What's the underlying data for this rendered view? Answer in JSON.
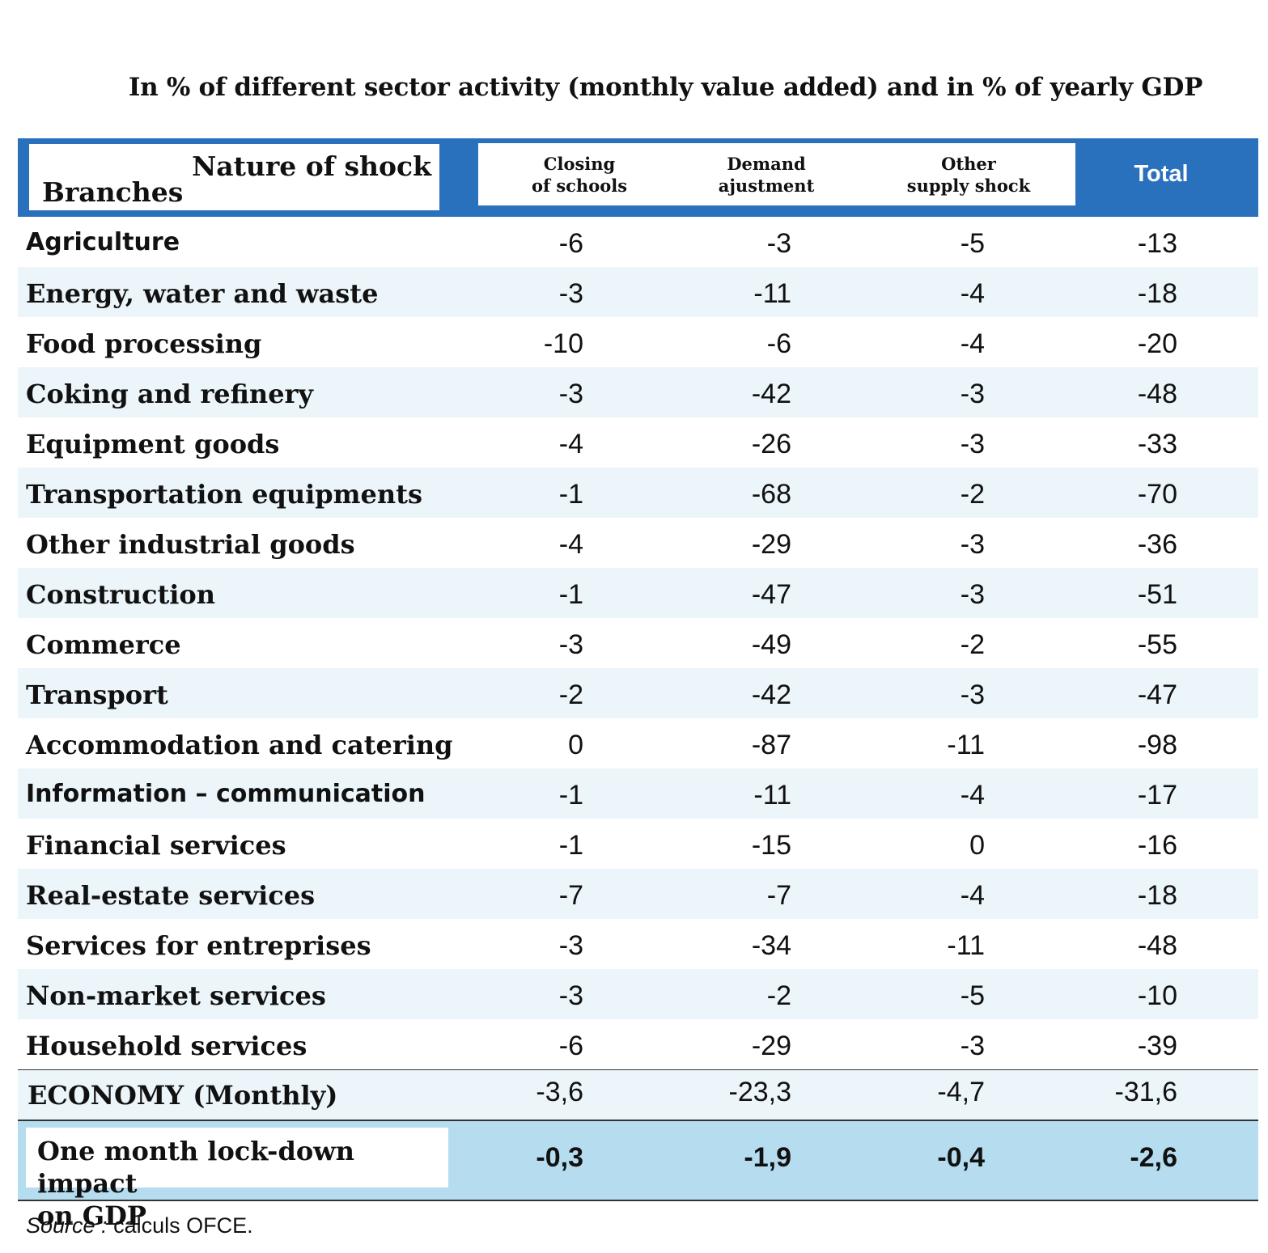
{
  "title": "In % of different sector activity (monthly value added) and in % of yearly GDP",
  "header": {
    "nature_of_shock": "Nature of shock",
    "branches": "Branches",
    "col1": [
      "Closing",
      "of schools"
    ],
    "col2": [
      "Demand",
      "ajustment"
    ],
    "col3": [
      "Other",
      "supply shock"
    ],
    "total": "Total"
  },
  "rows": [
    {
      "label": "Agriculture",
      "v": [
        "-6",
        "-3",
        "-5",
        "-13"
      ]
    },
    {
      "label": "Energy, water and waste",
      "v": [
        "-3",
        "-11",
        "-4",
        "-18"
      ]
    },
    {
      "label": "Food processing",
      "v": [
        "-10",
        "-6",
        "-4",
        "-20"
      ]
    },
    {
      "label": "Coking and refinery",
      "v": [
        "-3",
        "-42",
        "-3",
        "-48"
      ]
    },
    {
      "label": "Equipment goods",
      "v": [
        "-4",
        "-26",
        "-3",
        "-33"
      ]
    },
    {
      "label": "Transportation equipments",
      "v": [
        "-1",
        "-68",
        "-2",
        "-70"
      ]
    },
    {
      "label": "Other industrial goods",
      "v": [
        "-4",
        "-29",
        "-3",
        "-36"
      ]
    },
    {
      "label": "Construction",
      "v": [
        "-1",
        "-47",
        "-3",
        "-51"
      ]
    },
    {
      "label": "Commerce",
      "v": [
        "-3",
        "-49",
        "-2",
        "-55"
      ]
    },
    {
      "label": "Transport",
      "v": [
        "-2",
        "-42",
        "-3",
        "-47"
      ]
    },
    {
      "label": "Accommodation and catering",
      "v": [
        "0",
        "-87",
        "-11",
        "-98"
      ]
    },
    {
      "label": "Information – communication",
      "v": [
        "-1",
        "-11",
        "-4",
        "-17"
      ]
    },
    {
      "label": "Financial services",
      "v": [
        "-1",
        "-15",
        "0",
        "-16"
      ]
    },
    {
      "label": "Real-estate services",
      "v": [
        "-7",
        "-7",
        "-4",
        "-18"
      ]
    },
    {
      "label": "Services for entreprises",
      "v": [
        "-3",
        "-34",
        "-11",
        "-48"
      ]
    },
    {
      "label": "Non-market services",
      "v": [
        "-3",
        "-2",
        "-5",
        "-10"
      ]
    },
    {
      "label": "Household services",
      "v": [
        "-6",
        "-29",
        "-3",
        "-39"
      ]
    }
  ],
  "economy": {
    "label": "ECONOMY (Monthly)",
    "v": [
      "-3,6",
      "-23,3",
      "-4,7",
      "-31,6"
    ]
  },
  "impact": {
    "label": [
      "One month lock-down impact",
      "on GDP"
    ],
    "v": [
      "-0,3",
      "-1,9",
      "-0,4",
      "-2,6"
    ]
  },
  "source": {
    "prefix": "Source :",
    "text": " calculs OFCE."
  }
}
